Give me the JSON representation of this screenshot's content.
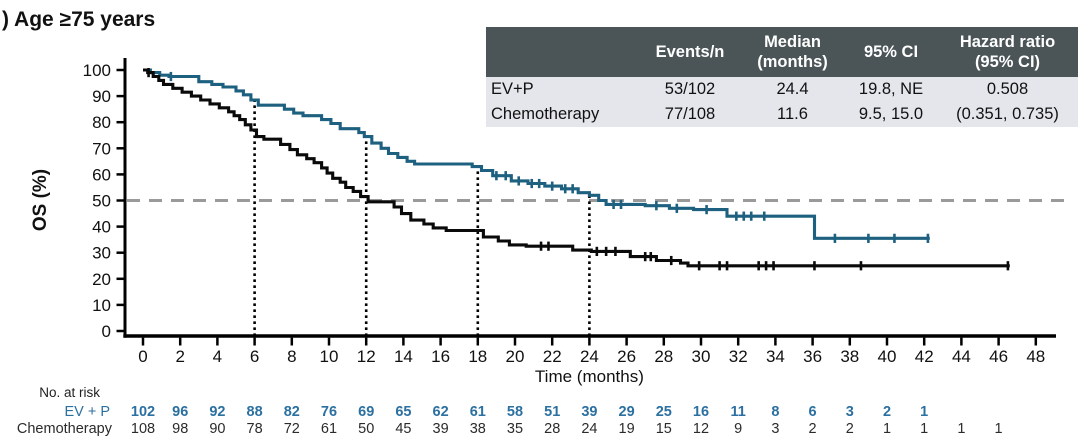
{
  "title": ") Age ≥75 years",
  "colors": {
    "evp_curve": "#1e607f",
    "evp_text": "#2b70a0",
    "chemo_curve": "#0a0a0a",
    "chemo_text": "#2b2b2b",
    "dashed_reference": "#9a9a9a",
    "axis": "#000000",
    "table_header_bg": "#4b5456",
    "table_header_text": "#ffffff",
    "table_row_bg": "#e4e6ec"
  },
  "summary_table": {
    "headers": [
      "",
      "Events/n",
      "Median\n(months)",
      "95% CI",
      "Hazard ratio\n(95% CI)"
    ],
    "rows": [
      [
        "EV+P",
        "53/102",
        "24.4",
        "19.8, NE",
        "0.508"
      ],
      [
        "Chemotherapy",
        "77/108",
        "11.6",
        "9.5, 15.0",
        "(0.351, 0.735)"
      ]
    ]
  },
  "chart_data": {
    "type": "line",
    "subtype": "kaplan-meier-step",
    "title": ") Age ≥75 years",
    "xlabel": "Time (months)",
    "ylabel": "OS (%)",
    "xlim": [
      0,
      48
    ],
    "ylim": [
      0,
      100
    ],
    "xtick_step": 2,
    "ytick_step": 10,
    "grid": false,
    "legend_position": "none",
    "reference_lines": {
      "horizontal_pct": 50,
      "vertical_months": [
        6,
        12,
        18,
        24
      ]
    },
    "series": [
      {
        "name": "EV+P",
        "color": "#1e607f",
        "end_t": 42.3,
        "steps": [
          [
            0,
            100
          ],
          [
            0.4,
            99
          ],
          [
            0.9,
            98
          ],
          [
            1.4,
            97.5
          ],
          [
            3.0,
            95.5
          ],
          [
            3.7,
            94.5
          ],
          [
            4.3,
            93.5
          ],
          [
            5.0,
            92
          ],
          [
            5.4,
            90.5
          ],
          [
            5.8,
            88.5
          ],
          [
            6.2,
            86.5
          ],
          [
            7.6,
            85
          ],
          [
            8.1,
            83.5
          ],
          [
            8.6,
            82.5
          ],
          [
            9.6,
            81
          ],
          [
            10.1,
            79.5
          ],
          [
            10.6,
            77.5
          ],
          [
            11.6,
            76
          ],
          [
            11.9,
            74.5
          ],
          [
            12.3,
            72
          ],
          [
            12.8,
            70
          ],
          [
            13.2,
            68
          ],
          [
            13.7,
            66.5
          ],
          [
            14.2,
            65
          ],
          [
            14.6,
            64
          ],
          [
            17.7,
            63
          ],
          [
            18.2,
            61.5
          ],
          [
            18.8,
            59.5
          ],
          [
            19.8,
            57.5
          ],
          [
            20.7,
            56.5
          ],
          [
            21.6,
            55.5
          ],
          [
            22.5,
            54.5
          ],
          [
            23.4,
            53
          ],
          [
            24.0,
            52
          ],
          [
            24.5,
            50
          ],
          [
            24.9,
            48.5
          ],
          [
            27.0,
            48
          ],
          [
            28.3,
            47
          ],
          [
            29.6,
            46.5
          ],
          [
            31.4,
            44
          ],
          [
            36.1,
            35.5
          ]
        ],
        "censor_times": [
          1.5,
          19.0,
          19.5,
          20.2,
          20.9,
          21.3,
          22.0,
          22.7,
          23.1,
          25.3,
          25.7,
          27.6,
          28.7,
          30.3,
          31.9,
          32.3,
          32.7,
          33.4,
          37.2,
          39.0,
          40.4,
          42.2
        ]
      },
      {
        "name": "Chemotherapy",
        "color": "#0a0a0a",
        "end_t": 46.6,
        "steps": [
          [
            0,
            100
          ],
          [
            0.25,
            99
          ],
          [
            0.55,
            97.5
          ],
          [
            0.85,
            96
          ],
          [
            1.1,
            94.5
          ],
          [
            1.6,
            93
          ],
          [
            2.1,
            91.5
          ],
          [
            2.6,
            90
          ],
          [
            3.1,
            88.5
          ],
          [
            3.6,
            87
          ],
          [
            4.1,
            85.5
          ],
          [
            4.6,
            84
          ],
          [
            4.9,
            82.5
          ],
          [
            5.2,
            81
          ],
          [
            5.5,
            79
          ],
          [
            5.8,
            77
          ],
          [
            6.1,
            74.5
          ],
          [
            6.5,
            73.5
          ],
          [
            7.4,
            71.5
          ],
          [
            7.9,
            69.5
          ],
          [
            8.3,
            67.5
          ],
          [
            8.8,
            66
          ],
          [
            9.2,
            64.5
          ],
          [
            9.6,
            62.5
          ],
          [
            9.9,
            60.5
          ],
          [
            10.2,
            58.5
          ],
          [
            10.6,
            57
          ],
          [
            10.9,
            55
          ],
          [
            11.3,
            53.5
          ],
          [
            11.7,
            51.5
          ],
          [
            12.1,
            49.5
          ],
          [
            13.5,
            47.5
          ],
          [
            13.9,
            45
          ],
          [
            14.4,
            42.5
          ],
          [
            15.1,
            41
          ],
          [
            15.6,
            39.5
          ],
          [
            16.3,
            38.5
          ],
          [
            18.3,
            36
          ],
          [
            19.1,
            34.5
          ],
          [
            19.7,
            33
          ],
          [
            20.6,
            32.5
          ],
          [
            23.1,
            31
          ],
          [
            24.1,
            30.5
          ],
          [
            26.2,
            28.5
          ],
          [
            27.6,
            27
          ],
          [
            28.9,
            26
          ],
          [
            29.3,
            25
          ]
        ],
        "censor_times": [
          0.3,
          21.4,
          21.8,
          24.4,
          24.9,
          25.4,
          27.0,
          27.3,
          28.4,
          29.9,
          31.0,
          31.4,
          33.1,
          33.5,
          33.9,
          36.1,
          38.6,
          46.5
        ]
      }
    ]
  },
  "at_risk": {
    "label": "No. at risk",
    "rows": [
      {
        "label": "EV + P",
        "values": [
          102,
          96,
          92,
          88,
          82,
          76,
          69,
          65,
          62,
          61,
          58,
          51,
          39,
          29,
          25,
          16,
          11,
          8,
          6,
          3,
          2,
          1
        ]
      },
      {
        "label": "Chemotherapy",
        "values": [
          108,
          98,
          90,
          78,
          72,
          61,
          50,
          45,
          39,
          38,
          35,
          28,
          24,
          19,
          15,
          12,
          9,
          3,
          2,
          2,
          1,
          1,
          1,
          1
        ]
      }
    ]
  }
}
